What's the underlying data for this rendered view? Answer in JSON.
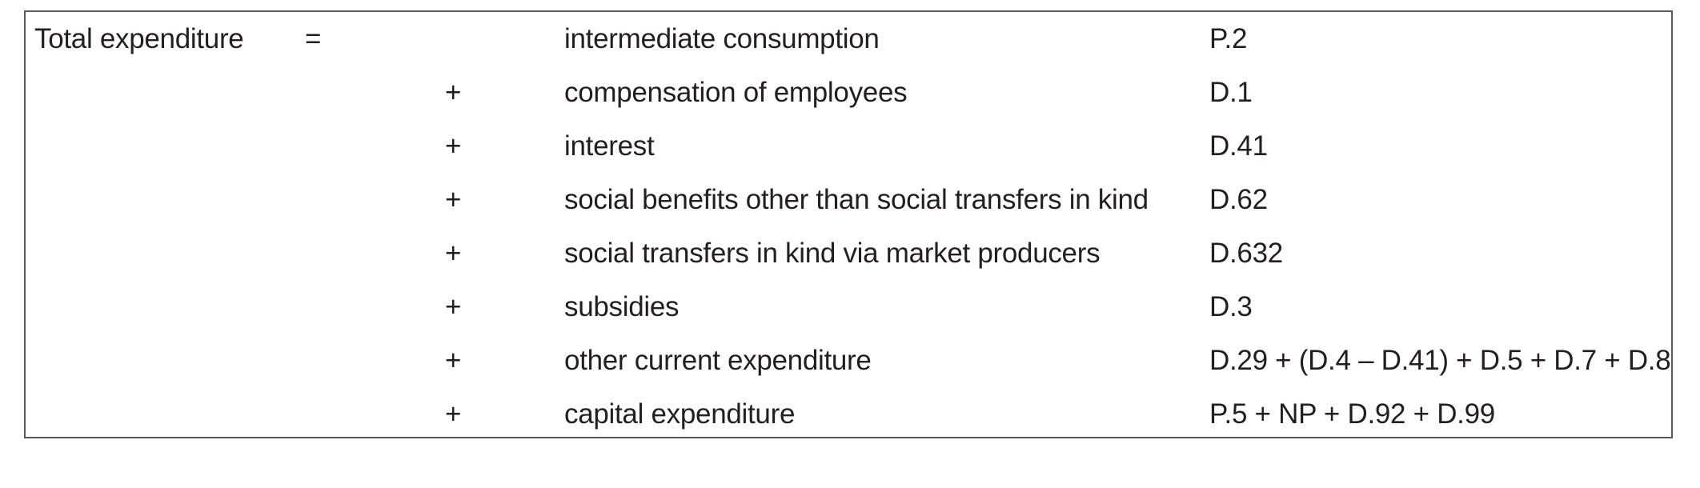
{
  "table": {
    "label": "Total expenditure",
    "equals": "=",
    "rows": [
      {
        "op": "",
        "description": "intermediate consumption",
        "code": "P.2"
      },
      {
        "op": "+",
        "description": "compensation of employees",
        "code": "D.1"
      },
      {
        "op": "+",
        "description": "interest",
        "code": "D.41"
      },
      {
        "op": "+",
        "description": "social benefits other than social transfers in kind",
        "code": "D.62"
      },
      {
        "op": "+",
        "description": "social transfers in kind via market producers",
        "code": "D.632"
      },
      {
        "op": "+",
        "description": "subsidies",
        "code": "D.3"
      },
      {
        "op": "+",
        "description": "other current expenditure",
        "code": "D.29 + (D.4 – D.41) + D.5 + D.7 + D.8"
      },
      {
        "op": "+",
        "description": "capital expenditure",
        "code": "P.5 + NP + D.92 + D.99"
      }
    ]
  }
}
